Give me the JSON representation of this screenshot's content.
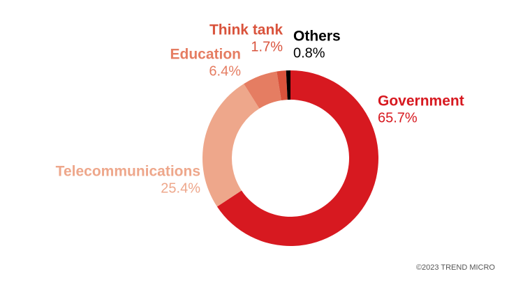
{
  "chart_data": {
    "type": "donut",
    "categories": [
      "Government",
      "Telecommunications",
      "Education",
      "Think tank",
      "Others"
    ],
    "values": [
      65.7,
      25.4,
      6.4,
      1.7,
      0.8
    ],
    "value_labels": [
      "65.7%",
      "25.4%",
      "6.4%",
      "1.7%",
      "0.8%"
    ],
    "colors": [
      "#d71920",
      "#eea78b",
      "#e57d62",
      "#d9533c",
      "#000000"
    ],
    "credit": "©2023 TREND MICRO"
  }
}
